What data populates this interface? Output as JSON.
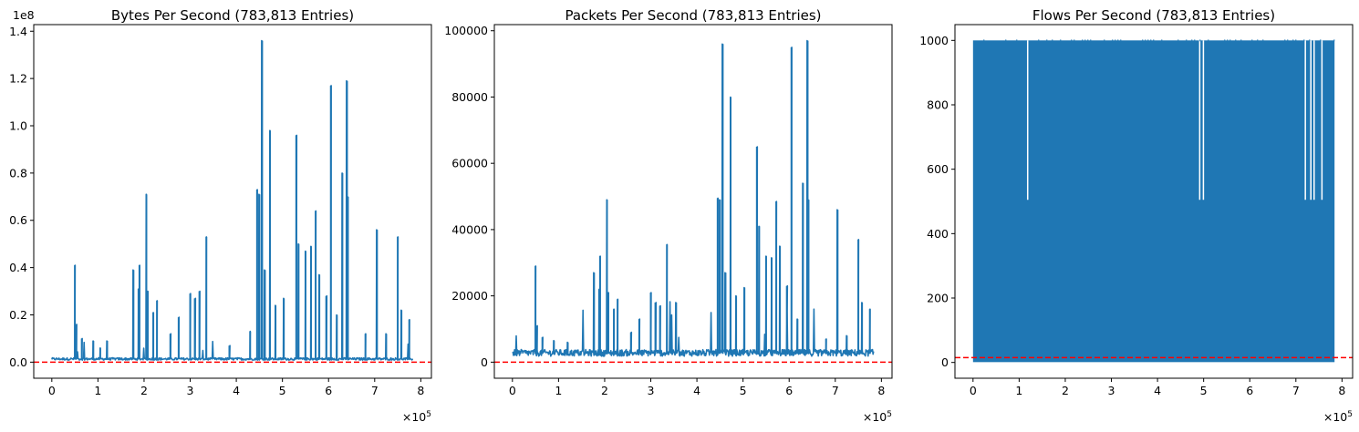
{
  "chart_data": [
    {
      "type": "line",
      "title": "Bytes Per Second (783,813 Entries)",
      "xlabel": "",
      "ylabel": "",
      "x_multiplier_label": "×10",
      "x_multiplier_exp": "5",
      "y_offset_label": "1e8",
      "xlim": [
        -0.3918,
        8.23
      ],
      "ylim": [
        -0.068,
        1.428
      ],
      "xticks": [
        0,
        1,
        2,
        3,
        4,
        5,
        6,
        7,
        8
      ],
      "xtick_labels": [
        "0",
        "1",
        "2",
        "3",
        "4",
        "5",
        "6",
        "7",
        "8"
      ],
      "yticks": [
        0.0,
        0.2,
        0.4,
        0.6,
        0.8,
        1.0,
        1.2,
        1.4
      ],
      "ytick_labels": [
        "0.0",
        "0.2",
        "0.4",
        "0.6",
        "0.8",
        "1.0",
        "1.2",
        "1.4"
      ],
      "reference_line": {
        "y": 0.0,
        "color": "#ff0000",
        "style": "dashed"
      },
      "series_color": "#1f77b4",
      "baseline": 0.012,
      "baseline_noise": 0.01,
      "spikes": [
        [
          0.5,
          0.41
        ],
        [
          0.53,
          0.16
        ],
        [
          0.65,
          0.1
        ],
        [
          0.9,
          0.09
        ],
        [
          1.05,
          0.06
        ],
        [
          1.2,
          0.09
        ],
        [
          1.77,
          0.39
        ],
        [
          1.88,
          0.31
        ],
        [
          1.9,
          0.41
        ],
        [
          2.05,
          0.71
        ],
        [
          2.08,
          0.3
        ],
        [
          2.2,
          0.21
        ],
        [
          2.28,
          0.26
        ],
        [
          2.57,
          0.12
        ],
        [
          2.75,
          0.19
        ],
        [
          3.0,
          0.29
        ],
        [
          3.1,
          0.27
        ],
        [
          3.2,
          0.3
        ],
        [
          3.35,
          0.53
        ],
        [
          3.85,
          0.07
        ],
        [
          4.3,
          0.13
        ],
        [
          4.45,
          0.73
        ],
        [
          4.5,
          0.71
        ],
        [
          4.56,
          1.36
        ],
        [
          4.62,
          0.39
        ],
        [
          4.73,
          0.98
        ],
        [
          4.85,
          0.24
        ],
        [
          5.03,
          0.27
        ],
        [
          5.3,
          0.96
        ],
        [
          5.35,
          0.5
        ],
        [
          5.5,
          0.47
        ],
        [
          5.62,
          0.49
        ],
        [
          5.72,
          0.64
        ],
        [
          5.8,
          0.37
        ],
        [
          5.95,
          0.28
        ],
        [
          6.05,
          1.17
        ],
        [
          6.18,
          0.2
        ],
        [
          6.3,
          0.8
        ],
        [
          6.4,
          1.19
        ],
        [
          6.42,
          0.7
        ],
        [
          6.8,
          0.12
        ],
        [
          7.05,
          0.56
        ],
        [
          7.25,
          0.12
        ],
        [
          7.5,
          0.53
        ],
        [
          7.58,
          0.22
        ],
        [
          7.75,
          0.18
        ]
      ]
    },
    {
      "type": "line",
      "title": "Packets Per Second (783,813 Entries)",
      "xlabel": "",
      "ylabel": "",
      "x_multiplier_label": "×10",
      "x_multiplier_exp": "5",
      "xlim": [
        -0.3918,
        8.23
      ],
      "ylim": [
        -4850,
        101850
      ],
      "xticks": [
        0,
        1,
        2,
        3,
        4,
        5,
        6,
        7,
        8
      ],
      "xtick_labels": [
        "0",
        "1",
        "2",
        "3",
        "4",
        "5",
        "6",
        "7",
        "8"
      ],
      "yticks": [
        0,
        20000,
        40000,
        60000,
        80000,
        100000
      ],
      "ytick_labels": [
        "0",
        "20000",
        "40000",
        "60000",
        "80000",
        "100000"
      ],
      "reference_line": {
        "y": 0,
        "color": "#ff0000",
        "style": "dashed"
      },
      "series_color": "#1f77b4",
      "baseline": 2500,
      "baseline_noise": 2000,
      "spikes": [
        [
          0.5,
          29000
        ],
        [
          0.53,
          11000
        ],
        [
          0.65,
          7500
        ],
        [
          0.9,
          6500
        ],
        [
          1.2,
          6000
        ],
        [
          1.77,
          27000
        ],
        [
          1.88,
          22000
        ],
        [
          1.9,
          32000
        ],
        [
          2.05,
          49000
        ],
        [
          2.08,
          21000
        ],
        [
          2.2,
          16000
        ],
        [
          2.28,
          19000
        ],
        [
          2.57,
          9000
        ],
        [
          2.75,
          13000
        ],
        [
          3.0,
          21000
        ],
        [
          3.1,
          18000
        ],
        [
          3.2,
          17000
        ],
        [
          3.35,
          35500
        ],
        [
          3.55,
          18000
        ],
        [
          4.45,
          49500
        ],
        [
          4.5,
          49000
        ],
        [
          4.56,
          96000
        ],
        [
          4.62,
          27000
        ],
        [
          4.73,
          80000
        ],
        [
          4.85,
          20000
        ],
        [
          5.03,
          22500
        ],
        [
          5.3,
          65000
        ],
        [
          5.35,
          41000
        ],
        [
          5.5,
          32000
        ],
        [
          5.62,
          31500
        ],
        [
          5.72,
          48500
        ],
        [
          5.8,
          35000
        ],
        [
          5.95,
          23000
        ],
        [
          6.05,
          95000
        ],
        [
          6.18,
          13000
        ],
        [
          6.3,
          54000
        ],
        [
          6.4,
          97000
        ],
        [
          6.42,
          49000
        ],
        [
          6.8,
          7000
        ],
        [
          7.05,
          46000
        ],
        [
          7.25,
          8000
        ],
        [
          7.5,
          37000
        ],
        [
          7.58,
          18000
        ],
        [
          7.75,
          16000
        ]
      ]
    },
    {
      "type": "line",
      "title": "Flows Per Second (783,813 Entries)",
      "xlabel": "",
      "ylabel": "",
      "x_multiplier_label": "×10",
      "x_multiplier_exp": "5",
      "xlim": [
        -0.3918,
        8.23
      ],
      "ylim": [
        -49,
        1049
      ],
      "xticks": [
        0,
        1,
        2,
        3,
        4,
        5,
        6,
        7,
        8
      ],
      "xtick_labels": [
        "0",
        "1",
        "2",
        "3",
        "4",
        "5",
        "6",
        "7",
        "8"
      ],
      "yticks": [
        0,
        200,
        400,
        600,
        800,
        1000
      ],
      "ytick_labels": [
        "0",
        "200",
        "400",
        "600",
        "800",
        "1000"
      ],
      "reference_line": {
        "y": 15,
        "color": "#ff0000",
        "style": "dashed"
      },
      "series_color": "#1f77b4",
      "data_extent": [
        0.0,
        7.8381
      ],
      "value_range": [
        1,
        1000
      ],
      "gaps": [
        [
          1.17,
          1.2,
          505
        ],
        [
          4.9,
          4.93,
          505
        ],
        [
          4.98,
          5.01,
          505
        ],
        [
          7.19,
          7.22,
          505
        ],
        [
          7.31,
          7.34,
          505
        ],
        [
          7.38,
          7.41,
          505
        ],
        [
          7.55,
          7.58,
          505
        ]
      ]
    }
  ]
}
